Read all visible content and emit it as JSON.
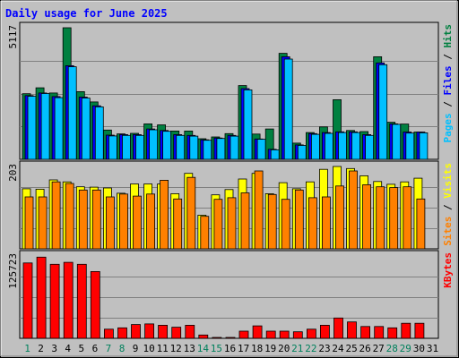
{
  "chart_data": {
    "type": "bar",
    "title": "Daily usage for June 2025",
    "categories": [
      "1",
      "2",
      "3",
      "4",
      "5",
      "6",
      "7",
      "8",
      "9",
      "10",
      "11",
      "12",
      "13",
      "14",
      "15",
      "16",
      "17",
      "18",
      "19",
      "20",
      "21",
      "22",
      "23",
      "24",
      "25",
      "26",
      "27",
      "28",
      "29",
      "30",
      "31"
    ],
    "weekend_days": [
      "1",
      "7",
      "8",
      "14",
      "15",
      "21",
      "22",
      "28",
      "29"
    ],
    "grid": true,
    "panels": [
      {
        "max_label": "5117",
        "ymax": 5117,
        "right_labels": [
          {
            "text": "Pages",
            "color": "#00c0ff"
          },
          {
            "text": " / ",
            "color": "#000000"
          },
          {
            "text": "Files",
            "color": "#0000ff"
          },
          {
            "text": " / ",
            "color": "#000000"
          },
          {
            "text": "Hits",
            "color": "#008040"
          }
        ],
        "series": [
          {
            "name": "Hits",
            "color": "#008040",
            "values": [
              2550,
              2780,
              2580,
              5117,
              2630,
              2230,
              1140,
              990,
              1010,
              1380,
              1340,
              1100,
              1100,
              800,
              870,
              1000,
              2870,
              980,
              1180,
              4120,
              630,
              1040,
              1260,
              2320,
              1120,
              1080,
              3990,
              1440,
              1370,
              1060,
              0
            ]
          },
          {
            "name": "Files",
            "color": "#0000ff",
            "values": [
              2480,
              2580,
              2440,
              3640,
              2420,
              2080,
              940,
              960,
              960,
              1180,
              1120,
              960,
              930,
              760,
              830,
              930,
              2750,
              790,
              390,
              3990,
              560,
              1000,
              1040,
              1070,
              1070,
              960,
              3750,
              1380,
              1060,
              1060,
              0
            ]
          },
          {
            "name": "Pages",
            "color": "#00c0ff",
            "values": [
              2450,
              2560,
              2400,
              3600,
              2380,
              2040,
              910,
              930,
              930,
              1150,
              1090,
              930,
              900,
              740,
              810,
              900,
              2700,
              780,
              370,
              3900,
              540,
              970,
              1010,
              1040,
              1040,
              930,
              3680,
              1360,
              1020,
              1030,
              0
            ]
          }
        ]
      },
      {
        "max_label": "203",
        "ymax": 203,
        "right_labels": [
          {
            "text": "Sites",
            "color": "#ff8000"
          },
          {
            "text": " / ",
            "color": "#000000"
          },
          {
            "text": "Visits",
            "color": "#ffff00"
          }
        ],
        "series": [
          {
            "name": "Visits",
            "color": "#ffff00",
            "values": [
              148,
              147,
              170,
              165,
              153,
              152,
              150,
              137,
              160,
              160,
              160,
              136,
              186,
              83,
              133,
              146,
              172,
              186,
              136,
              163,
              148,
              165,
              196,
              203,
              198,
              180,
              166,
              159,
              165,
              174,
              0
            ]
          },
          {
            "name": "Sites",
            "color": "#ff8000",
            "values": [
              128,
              128,
              165,
              161,
              145,
              145,
              128,
              135,
              130,
              135,
              169,
              123,
              176,
              80,
              122,
              126,
              138,
              192,
              134,
              122,
              145,
              126,
              128,
              155,
              192,
              158,
              153,
              151,
              153,
              123,
              0
            ]
          }
        ]
      },
      {
        "max_label": "125723",
        "ymax": 125723,
        "right_labels": [
          {
            "text": "KBytes",
            "color": "#ff0000"
          }
        ],
        "series": [
          {
            "name": "KBytes",
            "color": "#ff0000",
            "values": [
              115000,
              124000,
              113000,
              116000,
              113000,
              102000,
              14000,
              16000,
              21000,
              22000,
              20000,
              17000,
              20000,
              5000,
              1000,
              1000,
              11000,
              19000,
              11000,
              11000,
              10000,
              14000,
              20000,
              31000,
              25000,
              18000,
              18000,
              16000,
              23000,
              23000,
              0
            ]
          }
        ]
      }
    ]
  }
}
